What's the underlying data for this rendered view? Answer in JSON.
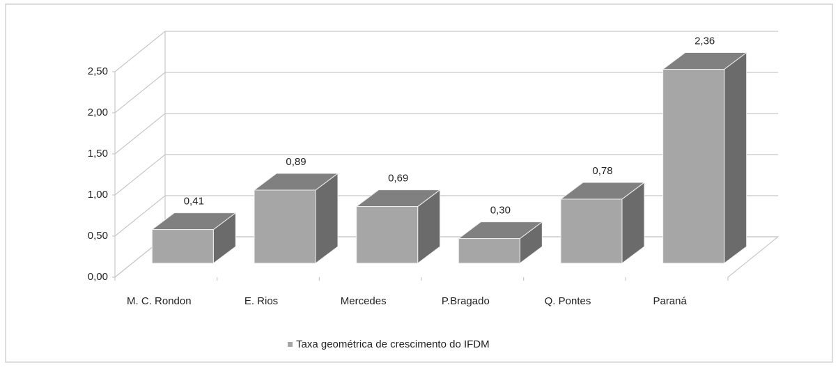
{
  "chart_data": {
    "type": "bar3d",
    "categories": [
      "M. C. Rondon",
      "E. Rios",
      "Mercedes",
      "P.Bragado",
      "Q. Pontes",
      "Paraná"
    ],
    "series": [
      {
        "name": "Taxa geométrica de crescimento do IFDM",
        "color": "#a6a6a6",
        "values": [
          0.41,
          0.89,
          0.69,
          0.3,
          0.78,
          2.36
        ],
        "value_labels": [
          "0,41",
          "0,89",
          "0,69",
          "0,30",
          "0,78",
          "2,36"
        ]
      }
    ],
    "ylim": [
      0,
      2.5
    ],
    "yticks": [
      {
        "value": 0,
        "label": "0,00"
      },
      {
        "value": 0.5,
        "label": "0,50"
      },
      {
        "value": 1,
        "label": "1,00"
      },
      {
        "value": 1.5,
        "label": "1,50"
      },
      {
        "value": 2,
        "label": "2,00"
      },
      {
        "value": 2.5,
        "label": "2,50"
      }
    ],
    "grid": true,
    "legend": "bottom"
  }
}
